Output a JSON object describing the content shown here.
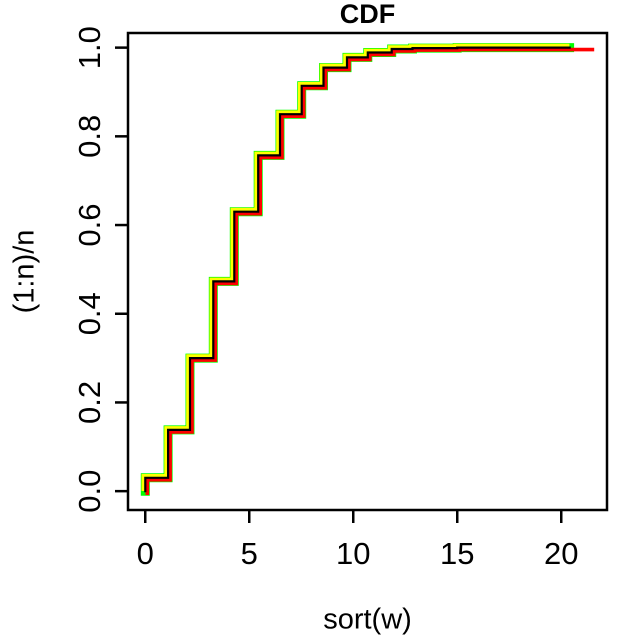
{
  "title": "CDF",
  "x_axis": {
    "label": "sort(w)",
    "ticks": [
      {
        "value": 0,
        "label": "0"
      },
      {
        "value": 5,
        "label": "5"
      },
      {
        "value": 10,
        "label": "10"
      },
      {
        "value": 15,
        "label": "15"
      },
      {
        "value": 20,
        "label": "20"
      }
    ]
  },
  "y_axis": {
    "label": "(1:n)/n",
    "ticks": [
      {
        "value": 0.0,
        "label": "0.0"
      },
      {
        "value": 0.2,
        "label": "0.2"
      },
      {
        "value": 0.4,
        "label": "0.4"
      },
      {
        "value": 0.6,
        "label": "0.6"
      },
      {
        "value": 0.8,
        "label": "0.8"
      },
      {
        "value": 1.0,
        "label": "1.0"
      }
    ]
  },
  "chart_data": {
    "type": "line",
    "subtype": "ecdf-step",
    "title": "CDF",
    "xlabel": "sort(w)",
    "ylabel": "(1:n)/n",
    "xlim": [
      -0.83,
      22.2
    ],
    "ylim": [
      -0.0425,
      1.033
    ],
    "x_ticks": [
      0,
      5,
      10,
      15,
      20
    ],
    "y_ticks": [
      0.0,
      0.2,
      0.4,
      0.6,
      0.8,
      1.0
    ],
    "grid": false,
    "legend": "none",
    "start_point": [
      0,
      0
    ],
    "steps": [
      [
        0.0,
        0.03
      ],
      [
        1.1,
        0.138
      ],
      [
        2.15,
        0.3
      ],
      [
        3.27,
        0.473
      ],
      [
        4.28,
        0.63
      ],
      [
        5.43,
        0.757
      ],
      [
        6.48,
        0.85
      ],
      [
        7.52,
        0.914
      ],
      [
        8.57,
        0.955
      ],
      [
        9.7,
        0.978
      ],
      [
        10.7,
        0.989
      ],
      [
        11.85,
        0.997
      ],
      [
        12.85,
        0.999
      ],
      [
        15.0,
        1.0
      ]
    ],
    "series": [
      {
        "name": "green-cdf",
        "color": "#00FF00",
        "end_x": 20.4
      },
      {
        "name": "yellow-cdf",
        "color": "#FFFF00",
        "end_x": 20.4
      },
      {
        "name": "red-cdf",
        "color": "#FF0000",
        "end_x": 21.4
      },
      {
        "name": "black-cdf",
        "color": "#000000",
        "end_x": 20.4
      }
    ]
  },
  "colors": {
    "background": "#FFFFFF",
    "axis": "#000000",
    "series_green": "#00FF00",
    "series_yellow": "#FFFF00",
    "series_red": "#FF0000",
    "series_black": "#000000"
  }
}
